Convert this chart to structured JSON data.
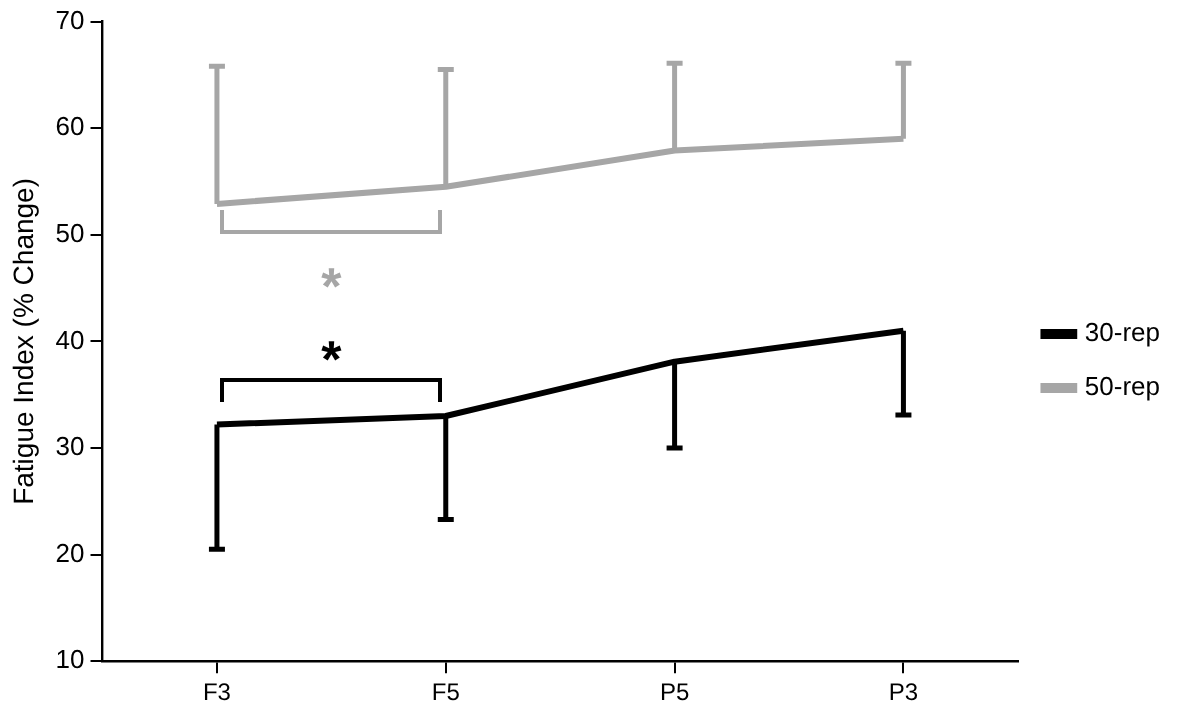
{
  "chart_data": {
    "type": "line",
    "ylabel": "Fatigue Index (% Change)",
    "categories": [
      "F3",
      "F5",
      "P5",
      "P3"
    ],
    "series": [
      {
        "name": "30-rep",
        "color": "#000000",
        "values": [
          32.2,
          33.0,
          38.1,
          41.0
        ],
        "errors": [
          [
            20.5,
            32.2
          ],
          [
            23.3,
            33.0
          ],
          [
            30.0,
            38.1
          ],
          [
            33.1,
            41.0
          ]
        ]
      },
      {
        "name": "50-rep",
        "color": "#a6a6a6",
        "values": [
          52.9,
          54.5,
          57.9,
          59.0
        ],
        "errors": [
          [
            52.9,
            65.8
          ],
          [
            54.5,
            65.5
          ],
          [
            57.9,
            66.1
          ],
          [
            59.0,
            66.1
          ]
        ]
      }
    ],
    "ylim": [
      10,
      70
    ],
    "yticks": [
      10,
      20,
      30,
      40,
      50,
      60,
      70
    ],
    "grid": false,
    "legend": "right",
    "marker": "none",
    "line_style": "solid",
    "annotations": [
      "*",
      "*"
    ]
  }
}
